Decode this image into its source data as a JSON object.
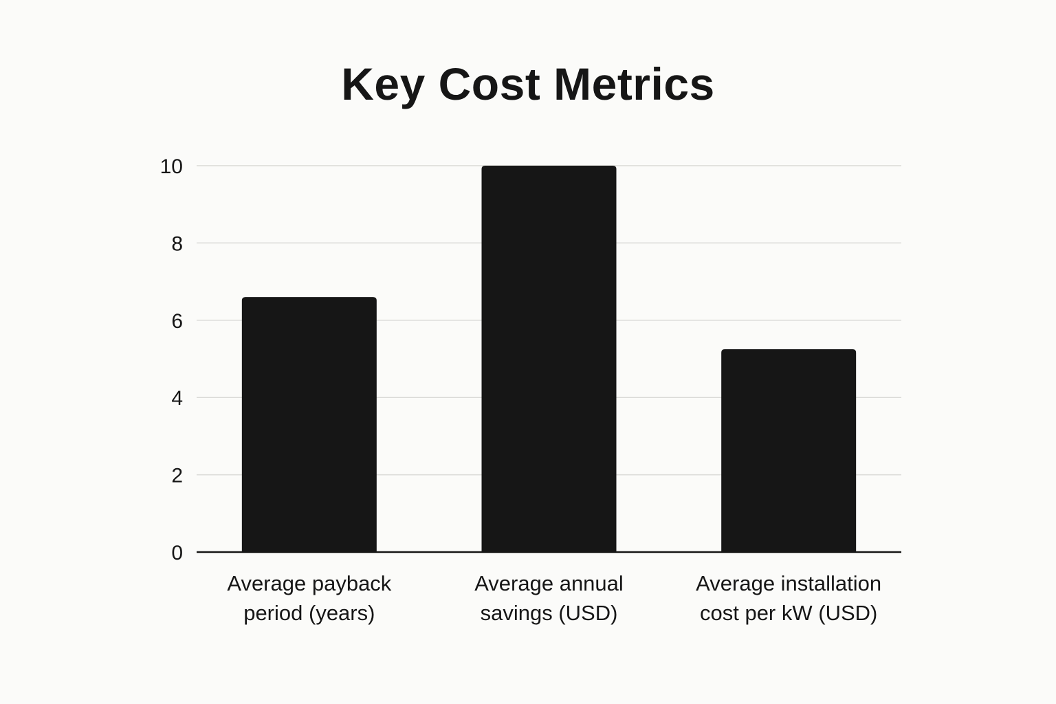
{
  "chart_data": {
    "type": "bar",
    "title": "Key Cost Metrics",
    "categories": [
      [
        "Average payback",
        "period (years)"
      ],
      [
        "Average annual",
        "savings (USD)"
      ],
      [
        "Average installation",
        "cost per kW (USD)"
      ]
    ],
    "values": [
      6.6,
      10,
      5.25
    ],
    "ylim": [
      0,
      10
    ],
    "yticks": [
      0,
      2,
      4,
      6,
      8,
      10
    ],
    "xlabel": "",
    "ylabel": "",
    "grid": true,
    "bar_color": "#161616",
    "grid_color": "#d9d9d6",
    "background": "#fbfbf9"
  }
}
